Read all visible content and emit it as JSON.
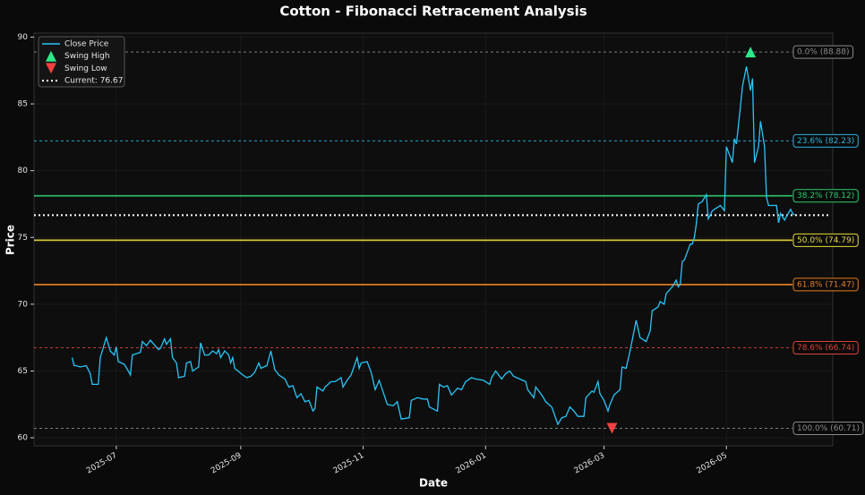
{
  "chart_data": {
    "type": "line",
    "title": "Cotton - Fibonacci Retracement Analysis",
    "x_label": "Date",
    "y_label": "Price",
    "x": [
      -22,
      -21,
      -20,
      -18,
      -15,
      -13,
      -12,
      -9,
      -8,
      -5,
      -3,
      -1,
      0,
      1,
      4,
      6,
      7,
      8,
      12,
      13,
      15,
      17,
      21,
      22,
      24,
      25,
      27,
      28,
      30,
      31,
      34,
      35,
      37,
      38,
      40,
      41,
      42,
      44,
      46,
      48,
      50,
      51,
      52,
      54,
      56,
      57,
      58,
      59,
      63,
      65,
      67,
      69,
      71,
      72,
      75,
      77,
      79,
      81,
      84,
      86,
      88,
      90,
      92,
      94,
      96,
      98,
      99,
      100,
      103,
      104,
      107,
      109,
      112,
      113,
      115,
      117,
      120,
      121,
      122,
      125,
      127,
      129,
      131,
      133,
      135,
      138,
      140,
      142,
      146,
      147,
      150,
      153,
      155,
      156,
      160,
      161,
      163,
      165,
      167,
      170,
      172,
      174,
      177,
      179,
      183,
      186,
      187,
      189,
      192,
      194,
      196,
      198,
      201,
      204,
      205,
      208,
      209,
      212,
      214,
      217,
      220,
      222,
      224,
      226,
      228,
      230,
      233,
      234,
      237,
      238,
      240,
      241,
      243,
      245,
      246,
      248,
      251,
      252,
      254,
      256,
      258,
      259,
      261,
      264,
      266,
      267,
      270,
      271,
      273,
      274,
      277,
      279,
      280,
      281,
      282,
      283,
      286,
      287,
      288,
      289,
      290,
      292,
      294,
      295,
      297,
      299,
      301,
      303,
      304,
      306,
      307,
      308,
      309,
      311,
      312,
      314,
      316,
      317,
      318,
      320,
      321,
      323,
      324,
      325,
      329,
      330,
      331,
      333,
      334,
      336,
      337,
      338
    ],
    "series": [
      {
        "name": "Close Price",
        "color": "#29c5f6",
        "values": [
          66.0,
          65.4,
          65.4,
          65.3,
          65.4,
          64.8,
          64.0,
          64.0,
          66.0,
          67.5,
          66.5,
          66.2,
          66.8,
          65.7,
          65.5,
          65.0,
          64.7,
          66.2,
          66.4,
          67.2,
          66.9,
          67.3,
          66.6,
          66.7,
          67.4,
          67.0,
          67.4,
          66.0,
          65.6,
          64.5,
          64.6,
          65.6,
          65.7,
          65.0,
          65.2,
          65.3,
          67.1,
          66.2,
          66.2,
          66.5,
          66.3,
          66.6,
          66.0,
          66.5,
          66.2,
          65.6,
          66.0,
          65.2,
          64.7,
          64.5,
          64.6,
          64.9,
          65.6,
          65.2,
          65.4,
          66.5,
          65.1,
          64.7,
          64.4,
          63.8,
          63.9,
          63.0,
          63.3,
          62.7,
          62.8,
          62.0,
          62.2,
          63.8,
          63.5,
          63.8,
          64.2,
          64.2,
          64.5,
          63.8,
          64.3,
          64.7,
          66.0,
          65.2,
          65.6,
          65.7,
          64.9,
          63.6,
          64.3,
          63.4,
          62.5,
          62.4,
          62.7,
          61.4,
          61.5,
          62.8,
          63.0,
          62.9,
          62.9,
          62.3,
          62.0,
          64.0,
          63.8,
          63.9,
          63.2,
          63.7,
          63.6,
          64.2,
          64.5,
          64.4,
          64.3,
          64.0,
          64.5,
          65.0,
          64.4,
          64.8,
          65.0,
          64.6,
          64.4,
          64.2,
          63.6,
          63.0,
          63.8,
          63.2,
          62.7,
          62.3,
          61.0,
          61.5,
          61.6,
          62.3,
          62.0,
          61.6,
          61.6,
          63.0,
          63.5,
          63.4,
          64.2,
          63.3,
          62.8,
          62.0,
          62.5,
          63.2,
          63.6,
          65.3,
          65.2,
          66.5,
          68.0,
          68.8,
          67.5,
          67.2,
          68.0,
          69.5,
          69.8,
          70.2,
          70.0,
          70.8,
          71.3,
          71.8,
          71.3,
          71.5,
          73.2,
          73.3,
          74.5,
          74.5,
          75.0,
          76.0,
          77.5,
          77.7,
          78.2,
          76.4,
          77.0,
          77.2,
          77.4,
          77.0,
          81.8,
          81.0,
          80.6,
          82.4,
          82.0,
          84.8,
          86.3,
          87.8,
          86.0,
          86.9,
          80.6,
          81.8,
          83.7,
          81.8,
          78.0,
          77.4,
          77.4,
          76.1,
          76.8,
          76.3,
          76.6,
          77.1,
          76.8,
          76.67
        ]
      }
    ],
    "markers": [
      {
        "name": "Swing High",
        "color": "#2ee889",
        "marker": "triangle-up",
        "x": [
          316
        ],
        "values": [
          88.88
        ]
      },
      {
        "name": "Swing Low",
        "color": "#f04040",
        "marker": "triangle-down",
        "x": [
          247
        ],
        "values": [
          60.71
        ]
      }
    ],
    "current": {
      "name": "Current: 76.67",
      "value": 76.67,
      "color": "#ffffff"
    },
    "levels": [
      {
        "label": "0.0% (88.88)",
        "value": 88.88,
        "color": "#8a8a8a",
        "style": "dashed"
      },
      {
        "label": "23.6% (82.23)",
        "value": 82.23,
        "color": "#2fb4dc",
        "style": "dashed"
      },
      {
        "label": "38.2% (78.12)",
        "value": 78.12,
        "color": "#2ecc71",
        "style": "solid"
      },
      {
        "label": "50.0% (74.79)",
        "value": 74.79,
        "color": "#e8dc3a",
        "style": "solid"
      },
      {
        "label": "61.8% (71.47)",
        "value": 71.47,
        "color": "#e67e22",
        "style": "solid"
      },
      {
        "label": "78.6% (66.74)",
        "value": 66.74,
        "color": "#d9443a",
        "style": "dashed"
      },
      {
        "label": "100.0% (60.71)",
        "value": 60.71,
        "color": "#8a8a8a",
        "style": "dashed"
      }
    ],
    "xlim": [
      -41,
      357
    ],
    "ylim": [
      59.4,
      90.3
    ],
    "xticks": [
      {
        "value": 0,
        "label": "2025-07"
      },
      {
        "value": 62,
        "label": "2025-09"
      },
      {
        "value": 123,
        "label": "2025-11"
      },
      {
        "value": 184,
        "label": "2026-01"
      },
      {
        "value": 243,
        "label": "2026-03"
      },
      {
        "value": 304,
        "label": "2026-05"
      }
    ],
    "yticks": [
      60,
      65,
      70,
      75,
      80,
      85,
      90
    ],
    "grid": true
  }
}
